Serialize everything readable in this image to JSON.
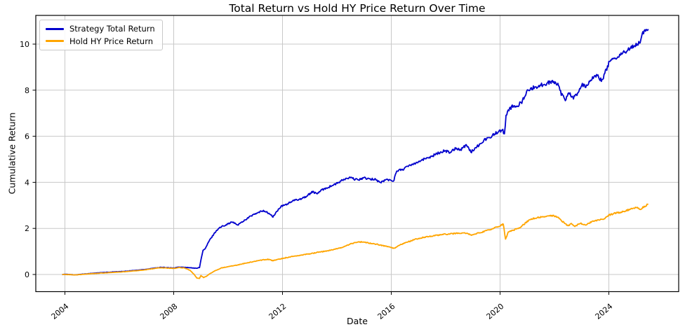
{
  "chart_data": {
    "type": "line",
    "title": "Total Return vs Hold HY Price Return Over Time",
    "xlabel": "Date",
    "ylabel": "Cumulative Return",
    "x_unit": "year (decimal)",
    "x_ticks": [
      2004,
      2008,
      2012,
      2016,
      2020,
      2024
    ],
    "y_ticks": [
      0,
      2,
      4,
      6,
      8,
      10
    ],
    "xlim": [
      2002.9,
      2026.6
    ],
    "ylim": [
      -0.75,
      11.25
    ],
    "grid": true,
    "legend_position": "upper left",
    "series": [
      {
        "name": "Strategy Total Return",
        "color": "#0000cd",
        "points": [
          [
            2003.9,
            0.0
          ],
          [
            2004.1,
            0.01
          ],
          [
            2004.35,
            -0.02
          ],
          [
            2004.6,
            0.01
          ],
          [
            2004.9,
            0.04
          ],
          [
            2005.2,
            0.07
          ],
          [
            2005.5,
            0.09
          ],
          [
            2005.8,
            0.11
          ],
          [
            2006.1,
            0.13
          ],
          [
            2006.4,
            0.16
          ],
          [
            2006.7,
            0.19
          ],
          [
            2007.0,
            0.23
          ],
          [
            2007.25,
            0.27
          ],
          [
            2007.5,
            0.31
          ],
          [
            2007.75,
            0.3
          ],
          [
            2008.0,
            0.28
          ],
          [
            2008.2,
            0.32
          ],
          [
            2008.4,
            0.31
          ],
          [
            2008.6,
            0.29
          ],
          [
            2008.8,
            0.27
          ],
          [
            2008.95,
            0.3
          ],
          [
            2009.02,
            0.75
          ],
          [
            2009.08,
            1.05
          ],
          [
            2009.15,
            1.1
          ],
          [
            2009.3,
            1.45
          ],
          [
            2009.5,
            1.8
          ],
          [
            2009.65,
            2.0
          ],
          [
            2009.8,
            2.1
          ],
          [
            2010.0,
            2.2
          ],
          [
            2010.15,
            2.28
          ],
          [
            2010.35,
            2.15
          ],
          [
            2010.6,
            2.35
          ],
          [
            2010.85,
            2.55
          ],
          [
            2011.05,
            2.65
          ],
          [
            2011.3,
            2.78
          ],
          [
            2011.5,
            2.65
          ],
          [
            2011.65,
            2.5
          ],
          [
            2011.8,
            2.75
          ],
          [
            2011.95,
            2.95
          ],
          [
            2012.15,
            3.05
          ],
          [
            2012.4,
            3.2
          ],
          [
            2012.65,
            3.28
          ],
          [
            2012.9,
            3.4
          ],
          [
            2013.1,
            3.6
          ],
          [
            2013.25,
            3.5
          ],
          [
            2013.5,
            3.7
          ],
          [
            2013.75,
            3.82
          ],
          [
            2014.0,
            3.95
          ],
          [
            2014.25,
            4.12
          ],
          [
            2014.5,
            4.2
          ],
          [
            2014.75,
            4.1
          ],
          [
            2015.0,
            4.2
          ],
          [
            2015.2,
            4.12
          ],
          [
            2015.4,
            4.15
          ],
          [
            2015.6,
            3.98
          ],
          [
            2015.8,
            4.12
          ],
          [
            2016.0,
            4.08
          ],
          [
            2016.1,
            4.1
          ],
          [
            2016.2,
            4.5
          ],
          [
            2016.45,
            4.58
          ],
          [
            2016.7,
            4.75
          ],
          [
            2016.95,
            4.88
          ],
          [
            2017.2,
            5.0
          ],
          [
            2017.45,
            5.12
          ],
          [
            2017.7,
            5.25
          ],
          [
            2017.95,
            5.38
          ],
          [
            2018.15,
            5.3
          ],
          [
            2018.35,
            5.48
          ],
          [
            2018.55,
            5.42
          ],
          [
            2018.75,
            5.62
          ],
          [
            2018.95,
            5.33
          ],
          [
            2019.15,
            5.55
          ],
          [
            2019.4,
            5.82
          ],
          [
            2019.6,
            5.95
          ],
          [
            2019.8,
            6.1
          ],
          [
            2019.95,
            6.22
          ],
          [
            2020.1,
            6.25
          ],
          [
            2020.16,
            6.08
          ],
          [
            2020.22,
            6.85
          ],
          [
            2020.3,
            7.1
          ],
          [
            2020.45,
            7.3
          ],
          [
            2020.6,
            7.28
          ],
          [
            2020.8,
            7.5
          ],
          [
            2021.0,
            7.95
          ],
          [
            2021.2,
            8.1
          ],
          [
            2021.45,
            8.2
          ],
          [
            2021.7,
            8.3
          ],
          [
            2021.95,
            8.38
          ],
          [
            2022.1,
            8.3
          ],
          [
            2022.25,
            7.85
          ],
          [
            2022.4,
            7.6
          ],
          [
            2022.55,
            7.9
          ],
          [
            2022.7,
            7.65
          ],
          [
            2022.9,
            7.95
          ],
          [
            2023.0,
            8.25
          ],
          [
            2023.15,
            8.15
          ],
          [
            2023.4,
            8.55
          ],
          [
            2023.55,
            8.65
          ],
          [
            2023.75,
            8.42
          ],
          [
            2024.0,
            9.18
          ],
          [
            2024.2,
            9.35
          ],
          [
            2024.45,
            9.55
          ],
          [
            2024.7,
            9.75
          ],
          [
            2024.9,
            9.9
          ],
          [
            2025.05,
            10.02
          ],
          [
            2025.15,
            10.1
          ],
          [
            2025.25,
            10.45
          ],
          [
            2025.35,
            10.55
          ],
          [
            2025.45,
            10.65
          ]
        ]
      },
      {
        "name": "Hold HY Price Return",
        "color": "#ffa500",
        "points": [
          [
            2003.9,
            0.0
          ],
          [
            2004.1,
            0.0
          ],
          [
            2004.35,
            -0.02
          ],
          [
            2004.6,
            0.0
          ],
          [
            2004.9,
            0.03
          ],
          [
            2005.2,
            0.05
          ],
          [
            2005.5,
            0.07
          ],
          [
            2005.8,
            0.09
          ],
          [
            2006.1,
            0.11
          ],
          [
            2006.4,
            0.14
          ],
          [
            2006.7,
            0.17
          ],
          [
            2007.0,
            0.21
          ],
          [
            2007.25,
            0.25
          ],
          [
            2007.5,
            0.29
          ],
          [
            2007.75,
            0.28
          ],
          [
            2008.0,
            0.26
          ],
          [
            2008.2,
            0.3
          ],
          [
            2008.4,
            0.28
          ],
          [
            2008.6,
            0.18
          ],
          [
            2008.75,
            0.0
          ],
          [
            2008.85,
            -0.15
          ],
          [
            2008.95,
            -0.17
          ],
          [
            2009.0,
            -0.05
          ],
          [
            2009.1,
            -0.13
          ],
          [
            2009.2,
            -0.08
          ],
          [
            2009.35,
            0.05
          ],
          [
            2009.55,
            0.18
          ],
          [
            2009.75,
            0.28
          ],
          [
            2010.0,
            0.34
          ],
          [
            2010.3,
            0.4
          ],
          [
            2010.6,
            0.48
          ],
          [
            2010.9,
            0.55
          ],
          [
            2011.2,
            0.62
          ],
          [
            2011.45,
            0.66
          ],
          [
            2011.65,
            0.6
          ],
          [
            2011.85,
            0.66
          ],
          [
            2012.1,
            0.72
          ],
          [
            2012.4,
            0.79
          ],
          [
            2012.7,
            0.84
          ],
          [
            2013.0,
            0.9
          ],
          [
            2013.3,
            0.96
          ],
          [
            2013.6,
            1.02
          ],
          [
            2013.9,
            1.09
          ],
          [
            2014.2,
            1.18
          ],
          [
            2014.5,
            1.32
          ],
          [
            2014.8,
            1.42
          ],
          [
            2015.1,
            1.38
          ],
          [
            2015.4,
            1.33
          ],
          [
            2015.7,
            1.25
          ],
          [
            2015.95,
            1.2
          ],
          [
            2016.1,
            1.13
          ],
          [
            2016.35,
            1.3
          ],
          [
            2016.65,
            1.43
          ],
          [
            2016.95,
            1.55
          ],
          [
            2017.25,
            1.62
          ],
          [
            2017.55,
            1.68
          ],
          [
            2017.85,
            1.73
          ],
          [
            2018.15,
            1.76
          ],
          [
            2018.45,
            1.79
          ],
          [
            2018.7,
            1.81
          ],
          [
            2018.95,
            1.71
          ],
          [
            2019.2,
            1.8
          ],
          [
            2019.5,
            1.9
          ],
          [
            2019.8,
            2.02
          ],
          [
            2020.0,
            2.12
          ],
          [
            2020.12,
            2.18
          ],
          [
            2020.2,
            1.53
          ],
          [
            2020.3,
            1.85
          ],
          [
            2020.5,
            1.93
          ],
          [
            2020.7,
            2.02
          ],
          [
            2020.9,
            2.2
          ],
          [
            2021.1,
            2.4
          ],
          [
            2021.4,
            2.47
          ],
          [
            2021.7,
            2.52
          ],
          [
            2021.95,
            2.56
          ],
          [
            2022.1,
            2.5
          ],
          [
            2022.3,
            2.3
          ],
          [
            2022.5,
            2.1
          ],
          [
            2022.62,
            2.22
          ],
          [
            2022.75,
            2.08
          ],
          [
            2022.95,
            2.22
          ],
          [
            2023.15,
            2.15
          ],
          [
            2023.4,
            2.3
          ],
          [
            2023.65,
            2.36
          ],
          [
            2023.85,
            2.42
          ],
          [
            2024.0,
            2.58
          ],
          [
            2024.25,
            2.66
          ],
          [
            2024.5,
            2.72
          ],
          [
            2024.75,
            2.82
          ],
          [
            2025.0,
            2.92
          ],
          [
            2025.15,
            2.84
          ],
          [
            2025.3,
            2.95
          ],
          [
            2025.45,
            3.05
          ]
        ]
      }
    ]
  },
  "legend": {
    "entries": [
      {
        "label": "Strategy Total Return",
        "color": "#0000cd"
      },
      {
        "label": "Hold HY Price Return",
        "color": "#ffa500"
      }
    ]
  },
  "style": {
    "grid_color": "#c8c8c8",
    "spine_color": "#000000",
    "background": "#ffffff",
    "line_width": 1.8
  }
}
